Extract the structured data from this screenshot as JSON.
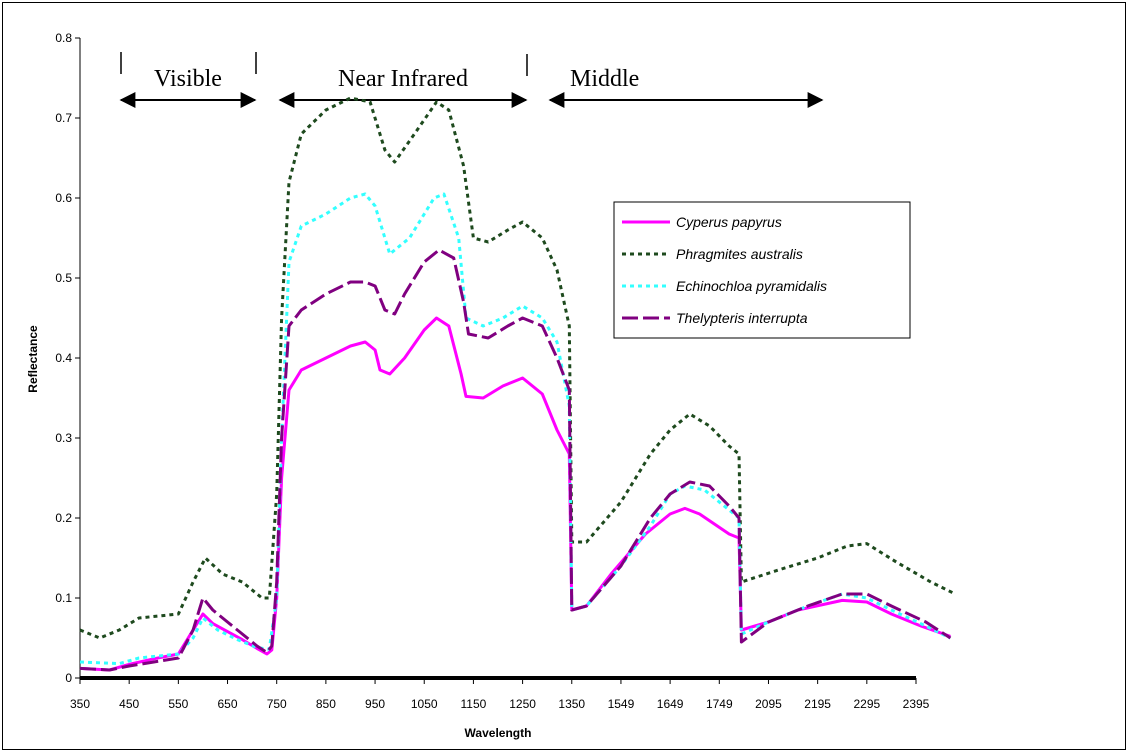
{
  "chart_data": {
    "type": "line",
    "title": "",
    "xlabel": "Wavelength",
    "ylabel": "Reflectance",
    "ylim": [
      0,
      0.8
    ],
    "yticks": [
      "0",
      "0.1",
      "0.2",
      "0.3",
      "0.4",
      "0.5",
      "0.6",
      "0.7",
      "0.8"
    ],
    "x_tick_labels": [
      "350",
      "450",
      "550",
      "650",
      "750",
      "850",
      "950",
      "1050",
      "1150",
      "1250",
      "1350",
      "1549",
      "1649",
      "1749",
      "2095",
      "2195",
      "2295",
      "2395"
    ],
    "grid": false,
    "legend_position": "right",
    "regions": [
      {
        "label": "Visible"
      },
      {
        "label": "Near Infrared"
      },
      {
        "label": "Middle"
      }
    ],
    "series": [
      {
        "name": "Cyperus papyrus",
        "color": "#ff00ff",
        "style": "solid",
        "points": [
          [
            0,
            0.012
          ],
          [
            0.6,
            0.01
          ],
          [
            1,
            0.017
          ],
          [
            1.5,
            0.024
          ],
          [
            2,
            0.03
          ],
          [
            2.3,
            0.06
          ],
          [
            2.5,
            0.08
          ],
          [
            2.7,
            0.068
          ],
          [
            3,
            0.058
          ],
          [
            3.3,
            0.048
          ],
          [
            3.6,
            0.037
          ],
          [
            3.8,
            0.03
          ],
          [
            3.9,
            0.035
          ],
          [
            4,
            0.1
          ],
          [
            4.1,
            0.25
          ],
          [
            4.25,
            0.36
          ],
          [
            4.5,
            0.385
          ],
          [
            5,
            0.4
          ],
          [
            5.5,
            0.415
          ],
          [
            5.8,
            0.42
          ],
          [
            6,
            0.41
          ],
          [
            6.1,
            0.385
          ],
          [
            6.3,
            0.38
          ],
          [
            6.6,
            0.4
          ],
          [
            7,
            0.435
          ],
          [
            7.25,
            0.45
          ],
          [
            7.5,
            0.44
          ],
          [
            7.75,
            0.38
          ],
          [
            7.85,
            0.352
          ],
          [
            8.2,
            0.35
          ],
          [
            8.6,
            0.365
          ],
          [
            9,
            0.375
          ],
          [
            9.4,
            0.355
          ],
          [
            9.7,
            0.31
          ],
          [
            9.95,
            0.28
          ],
          [
            10,
            0.085
          ],
          [
            10.3,
            0.09
          ],
          [
            10.8,
            0.13
          ],
          [
            11.5,
            0.18
          ],
          [
            12,
            0.205
          ],
          [
            12.3,
            0.212
          ],
          [
            12.6,
            0.205
          ],
          [
            13.2,
            0.18
          ],
          [
            13.4,
            0.175
          ],
          [
            13.45,
            0.06
          ],
          [
            14,
            0.07
          ],
          [
            14.6,
            0.085
          ],
          [
            15.5,
            0.097
          ],
          [
            16,
            0.095
          ],
          [
            16.5,
            0.08
          ],
          [
            17.1,
            0.065
          ],
          [
            17.7,
            0.052
          ]
        ]
      },
      {
        "name": "Phragmites australis",
        "color": "#1e4a1e",
        "style": "dotted",
        "points": [
          [
            0,
            0.06
          ],
          [
            0.4,
            0.05
          ],
          [
            0.8,
            0.06
          ],
          [
            1.2,
            0.075
          ],
          [
            2,
            0.08
          ],
          [
            2.3,
            0.12
          ],
          [
            2.55,
            0.15
          ],
          [
            2.9,
            0.13
          ],
          [
            3.3,
            0.12
          ],
          [
            3.7,
            0.1
          ],
          [
            3.85,
            0.1
          ],
          [
            4,
            0.23
          ],
          [
            4.1,
            0.45
          ],
          [
            4.25,
            0.62
          ],
          [
            4.5,
            0.68
          ],
          [
            5,
            0.71
          ],
          [
            5.5,
            0.725
          ],
          [
            5.9,
            0.72
          ],
          [
            6.2,
            0.66
          ],
          [
            6.4,
            0.645
          ],
          [
            6.8,
            0.68
          ],
          [
            7.25,
            0.72
          ],
          [
            7.5,
            0.71
          ],
          [
            7.8,
            0.64
          ],
          [
            8,
            0.55
          ],
          [
            8.3,
            0.545
          ],
          [
            8.7,
            0.56
          ],
          [
            9,
            0.57
          ],
          [
            9.4,
            0.55
          ],
          [
            9.7,
            0.51
          ],
          [
            9.95,
            0.44
          ],
          [
            10,
            0.17
          ],
          [
            10.3,
            0.17
          ],
          [
            11,
            0.22
          ],
          [
            11.6,
            0.28
          ],
          [
            12,
            0.31
          ],
          [
            12.4,
            0.33
          ],
          [
            12.8,
            0.315
          ],
          [
            13.2,
            0.29
          ],
          [
            13.4,
            0.28
          ],
          [
            13.45,
            0.12
          ],
          [
            14.2,
            0.135
          ],
          [
            15,
            0.15
          ],
          [
            15.6,
            0.165
          ],
          [
            16,
            0.168
          ],
          [
            16.6,
            0.145
          ],
          [
            17.3,
            0.12
          ],
          [
            17.8,
            0.105
          ]
        ]
      },
      {
        "name": "Echinochloa pyramidalis",
        "color": "#33ffff",
        "style": "dotted",
        "points": [
          [
            0,
            0.02
          ],
          [
            0.8,
            0.018
          ],
          [
            1.2,
            0.025
          ],
          [
            2,
            0.03
          ],
          [
            2.3,
            0.05
          ],
          [
            2.5,
            0.075
          ],
          [
            2.8,
            0.06
          ],
          [
            3.2,
            0.048
          ],
          [
            3.6,
            0.038
          ],
          [
            3.85,
            0.036
          ],
          [
            4,
            0.1
          ],
          [
            4.1,
            0.3
          ],
          [
            4.25,
            0.52
          ],
          [
            4.5,
            0.565
          ],
          [
            5,
            0.58
          ],
          [
            5.5,
            0.6
          ],
          [
            5.8,
            0.605
          ],
          [
            6,
            0.59
          ],
          [
            6.3,
            0.53
          ],
          [
            6.7,
            0.55
          ],
          [
            7.2,
            0.6
          ],
          [
            7.4,
            0.605
          ],
          [
            7.7,
            0.55
          ],
          [
            7.85,
            0.45
          ],
          [
            8.2,
            0.44
          ],
          [
            8.6,
            0.45
          ],
          [
            9,
            0.465
          ],
          [
            9.4,
            0.45
          ],
          [
            9.7,
            0.42
          ],
          [
            9.95,
            0.34
          ],
          [
            10,
            0.085
          ],
          [
            10.3,
            0.09
          ],
          [
            11,
            0.14
          ],
          [
            11.6,
            0.19
          ],
          [
            12,
            0.23
          ],
          [
            12.3,
            0.24
          ],
          [
            12.7,
            0.235
          ],
          [
            13.2,
            0.21
          ],
          [
            13.4,
            0.2
          ],
          [
            13.45,
            0.055
          ],
          [
            14,
            0.07
          ],
          [
            14.8,
            0.09
          ],
          [
            15.5,
            0.105
          ],
          [
            16,
            0.1
          ],
          [
            16.5,
            0.085
          ],
          [
            17.2,
            0.065
          ],
          [
            17.7,
            0.05
          ]
        ]
      },
      {
        "name": "Thelypteris interrupta",
        "color": "#800080",
        "style": "dashed",
        "points": [
          [
            0,
            0.012
          ],
          [
            0.6,
            0.01
          ],
          [
            1,
            0.015
          ],
          [
            1.5,
            0.02
          ],
          [
            2,
            0.025
          ],
          [
            2.3,
            0.06
          ],
          [
            2.5,
            0.1
          ],
          [
            2.7,
            0.085
          ],
          [
            3,
            0.07
          ],
          [
            3.3,
            0.055
          ],
          [
            3.6,
            0.04
          ],
          [
            3.8,
            0.032
          ],
          [
            3.9,
            0.04
          ],
          [
            4,
            0.12
          ],
          [
            4.1,
            0.3
          ],
          [
            4.25,
            0.44
          ],
          [
            4.5,
            0.46
          ],
          [
            5,
            0.48
          ],
          [
            5.5,
            0.495
          ],
          [
            5.8,
            0.495
          ],
          [
            6,
            0.49
          ],
          [
            6.2,
            0.46
          ],
          [
            6.4,
            0.455
          ],
          [
            6.6,
            0.48
          ],
          [
            7,
            0.52
          ],
          [
            7.3,
            0.535
          ],
          [
            7.6,
            0.525
          ],
          [
            7.8,
            0.47
          ],
          [
            7.9,
            0.43
          ],
          [
            8.3,
            0.425
          ],
          [
            8.7,
            0.44
          ],
          [
            9,
            0.45
          ],
          [
            9.4,
            0.44
          ],
          [
            9.7,
            0.4
          ],
          [
            9.95,
            0.36
          ],
          [
            10,
            0.085
          ],
          [
            10.3,
            0.09
          ],
          [
            11,
            0.14
          ],
          [
            11.6,
            0.2
          ],
          [
            12,
            0.23
          ],
          [
            12.4,
            0.245
          ],
          [
            12.8,
            0.24
          ],
          [
            13.2,
            0.215
          ],
          [
            13.4,
            0.2
          ],
          [
            13.45,
            0.045
          ],
          [
            14,
            0.07
          ],
          [
            14.8,
            0.09
          ],
          [
            15.5,
            0.105
          ],
          [
            16,
            0.105
          ],
          [
            16.5,
            0.09
          ],
          [
            17.2,
            0.07
          ],
          [
            17.7,
            0.05
          ]
        ]
      }
    ]
  }
}
